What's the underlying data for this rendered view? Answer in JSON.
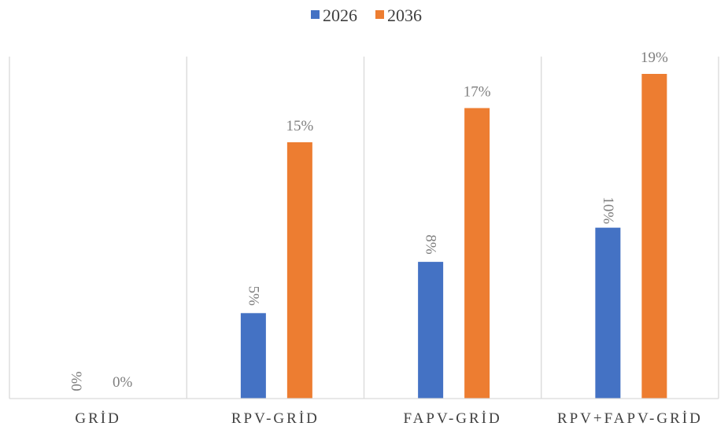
{
  "chart_data": {
    "type": "bar",
    "categories": [
      "GRİD",
      "RPV-GRİD",
      "FAPV-GRİD",
      "RPV+FAPV-GRİD"
    ],
    "series": [
      {
        "name": "2026",
        "color": "#4472c4",
        "values": [
          0,
          5,
          8,
          10
        ],
        "labels": [
          "%0",
          "5%",
          "8%",
          "10%"
        ],
        "label_rotated": true
      },
      {
        "name": "2036",
        "color": "#ed7d31",
        "values": [
          0,
          15,
          17,
          19
        ],
        "labels": [
          "0%",
          "15%",
          "17%",
          "19%"
        ],
        "label_rotated": false
      }
    ],
    "ylim": [
      0,
      20
    ],
    "grid": false,
    "category_separators": true,
    "legend_position": "top-center"
  }
}
